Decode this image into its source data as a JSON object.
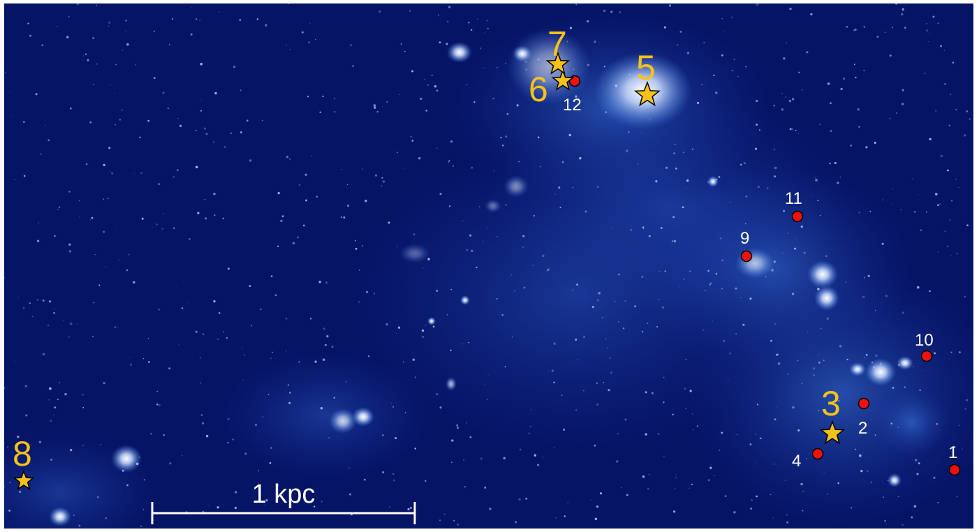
{
  "colors": {
    "background_dark": "#061466",
    "nebula_glow": "#4a8bf0",
    "star_marker": "#f5c21b",
    "circle_marker": "#ee1111",
    "label_star": "#f5c21b",
    "label_circle": "#ffffff",
    "scale_bar": "#ffffff"
  },
  "star_markers": [
    {
      "label": "3"
    },
    {
      "label": "5"
    },
    {
      "label": "6"
    },
    {
      "label": "7"
    },
    {
      "label": "8"
    }
  ],
  "circle_markers": [
    {
      "label": "1"
    },
    {
      "label": "2"
    },
    {
      "label": "4"
    },
    {
      "label": "9"
    },
    {
      "label": "10"
    },
    {
      "label": "11"
    },
    {
      "label": "12"
    }
  ],
  "scale_bar": {
    "label": "1 kpc"
  }
}
